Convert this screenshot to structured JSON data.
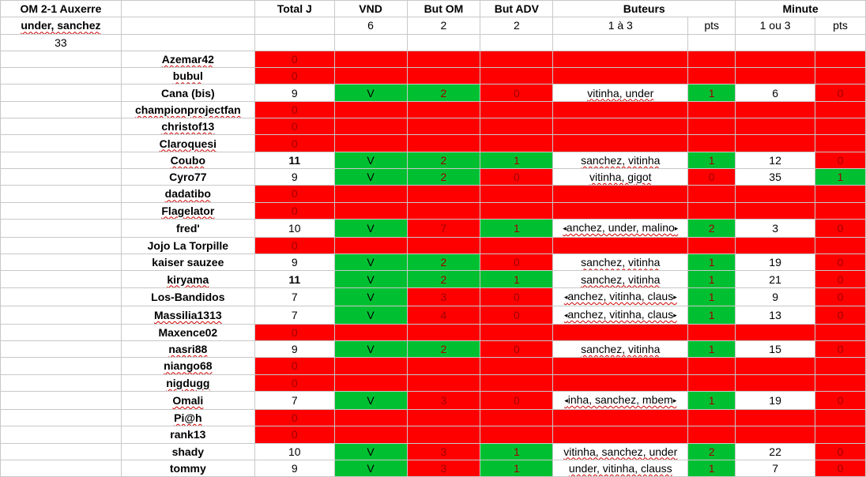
{
  "match": {
    "title": "OM 2-1 Auxerre",
    "scorers": "under, sanchez",
    "minute": "33"
  },
  "headers": {
    "total": "Total J",
    "vnd": "VND",
    "but_om": "But OM",
    "but_adv": "But ADV",
    "buteurs": "Buteurs",
    "minute": "Minute"
  },
  "subheaders": {
    "vnd": "6",
    "but_om": "2",
    "but_adv": "2",
    "buteurs": "1 à 3",
    "buteurs_pts": "pts",
    "minute": "1 ou 3",
    "minute_pts": "pts"
  },
  "colors": {
    "red": "#ff0000",
    "green": "#00c032",
    "white": "#ffffff"
  },
  "rows": [
    {
      "name": "Azemar42",
      "total": "0"
    },
    {
      "name": "bubul",
      "total": "0"
    },
    {
      "name": "Cana (bis)",
      "total": "9",
      "vnd": "V",
      "but_om": "2",
      "but_adv": "0",
      "buteurs": "vitinha, under",
      "bpts": "1",
      "minute": "6",
      "mpts": "0"
    },
    {
      "name": "championprojectfan",
      "total": "0"
    },
    {
      "name": "christof13",
      "total": "0"
    },
    {
      "name": "Claroquesi",
      "total": "0"
    },
    {
      "name": "Coubo",
      "total": "11",
      "vnd": "V",
      "but_om": "2",
      "but_adv": "1",
      "buteurs": "sanchez, vitinha",
      "bpts": "1",
      "minute": "12",
      "mpts": "0"
    },
    {
      "name": "Cyro77",
      "total": "9",
      "vnd": "V",
      "but_om": "2",
      "but_adv": "0",
      "buteurs": "vitinha, gigot",
      "bpts": "0",
      "minute": "35",
      "mpts": "1"
    },
    {
      "name": "dadatibo",
      "total": "0"
    },
    {
      "name": "Flagelator",
      "total": "0"
    },
    {
      "name": "fred'",
      "total": "10",
      "vnd": "V",
      "but_om": "7",
      "but_adv": "1",
      "buteurs": "anchez, under, malino",
      "bpts": "2",
      "minute": "3",
      "mpts": "0"
    },
    {
      "name": "Jojo La Torpille",
      "total": "0"
    },
    {
      "name": "kaiser sauzee",
      "total": "9",
      "vnd": "V",
      "but_om": "2",
      "but_adv": "0",
      "buteurs": "sanchez, vitinha",
      "bpts": "1",
      "minute": "19",
      "mpts": "0"
    },
    {
      "name": "kiryama",
      "total": "11",
      "vnd": "V",
      "but_om": "2",
      "but_adv": "1",
      "buteurs": "sanchez, vitinha",
      "bpts": "1",
      "minute": "21",
      "mpts": "0"
    },
    {
      "name": "Los-Bandidos",
      "total": "7",
      "vnd": "V",
      "but_om": "3",
      "but_adv": "0",
      "buteurs": "anchez, vitinha, claus",
      "bpts": "1",
      "minute": "9",
      "mpts": "0"
    },
    {
      "name": "Massilia1313",
      "total": "7",
      "vnd": "V",
      "but_om": "4",
      "but_adv": "0",
      "buteurs": "anchez, vitinha, claus",
      "bpts": "1",
      "minute": "13",
      "mpts": "0"
    },
    {
      "name": "Maxence02",
      "total": "0"
    },
    {
      "name": "nasri88",
      "total": "9",
      "vnd": "V",
      "but_om": "2",
      "but_adv": "0",
      "buteurs": "sanchez, vitinha",
      "bpts": "1",
      "minute": "15",
      "mpts": "0"
    },
    {
      "name": "niango68",
      "total": "0"
    },
    {
      "name": "nigdugg",
      "total": "0"
    },
    {
      "name": "Omali",
      "total": "7",
      "vnd": "V",
      "but_om": "3",
      "but_adv": "0",
      "buteurs": "inha, sanchez, mbem",
      "bpts": "1",
      "minute": "19",
      "mpts": "0"
    },
    {
      "name": "Pi@h",
      "total": "0"
    },
    {
      "name": "rank13",
      "total": "0"
    },
    {
      "name": "shady",
      "total": "10",
      "vnd": "V",
      "but_om": "3",
      "but_adv": "1",
      "buteurs": "vitinha, sanchez, under",
      "bpts": "2",
      "minute": "22",
      "mpts": "0"
    },
    {
      "name": "tommy",
      "total": "9",
      "vnd": "V",
      "but_om": "3",
      "but_adv": "1",
      "buteurs": "under, vitinha, clauss",
      "bpts": "1",
      "minute": "7",
      "mpts": "0"
    }
  ]
}
